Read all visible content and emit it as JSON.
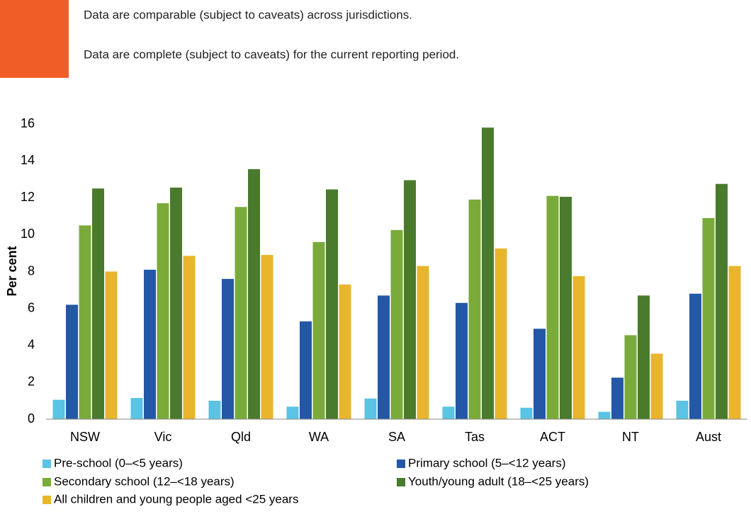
{
  "header": {
    "line1": "Data are comparable (subject to caveats) across jurisdictions.",
    "line2": "Data are complete (subject to caveats) for the current reporting period."
  },
  "chart_data": {
    "type": "bar",
    "ylabel": "Per cent",
    "categories": [
      "NSW",
      "Vic",
      "Qld",
      "WA",
      "SA",
      "Tas",
      "ACT",
      "NT",
      "Aust"
    ],
    "series": [
      {
        "name": "Pre-school (0–<5 years)",
        "color": "#5bc3e3",
        "values": [
          1.05,
          1.15,
          1.0,
          0.68,
          1.12,
          0.68,
          0.62,
          0.4,
          1.0
        ]
      },
      {
        "name": "Primary school (5–<12 years)",
        "color": "#2458a6",
        "values": [
          6.2,
          8.1,
          7.6,
          5.3,
          6.7,
          6.3,
          4.9,
          2.25,
          6.8
        ]
      },
      {
        "name": "Secondary school (12–<18 years)",
        "color": "#7aab3a",
        "values": [
          10.5,
          11.7,
          11.5,
          9.6,
          10.25,
          11.9,
          12.1,
          4.55,
          10.9
        ]
      },
      {
        "name": "Youth/young adult (18–<25 years)",
        "color": "#4a7b2c",
        "values": [
          12.5,
          12.55,
          13.55,
          12.45,
          12.95,
          15.8,
          12.05,
          6.7,
          12.75
        ]
      },
      {
        "name": "All children and young people aged <25 years",
        "color": "#e8b52c",
        "values": [
          8.0,
          8.85,
          8.9,
          7.3,
          8.3,
          9.25,
          7.75,
          3.55,
          8.3
        ]
      }
    ],
    "ylim": [
      0,
      16
    ],
    "yticks": [
      0,
      2,
      4,
      6,
      8,
      10,
      12,
      14,
      16
    ],
    "grid": false
  }
}
